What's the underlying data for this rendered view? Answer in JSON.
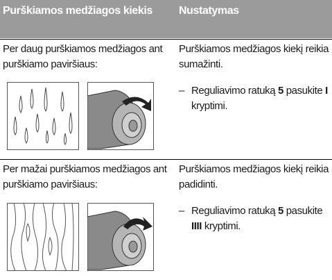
{
  "table": {
    "header": [
      "Purškiamos medžiagos kiekis",
      "Nustatymas"
    ],
    "rows": [
      {
        "problem": "Per daug purškiamos medžiagos ant purškiamo paviršiaus:",
        "setting": "Purškiamos medžiagos kiekį reikia sumažinti.",
        "marker": "–",
        "step": [
          "Reguliavimo ratuką ",
          "5",
          " pasukite ",
          "I",
          " kryptimi."
        ]
      },
      {
        "problem": "Per mažai purškiamos medžiagos ant purškiamo paviršiaus:",
        "setting": "Purškiamos medžiagos kiekį reikia padidinti.",
        "marker": "–",
        "step": [
          "Reguliavimo ratuką ",
          "5",
          " pasukite ",
          "IIII",
          " kryptimi."
        ]
      }
    ]
  }
}
